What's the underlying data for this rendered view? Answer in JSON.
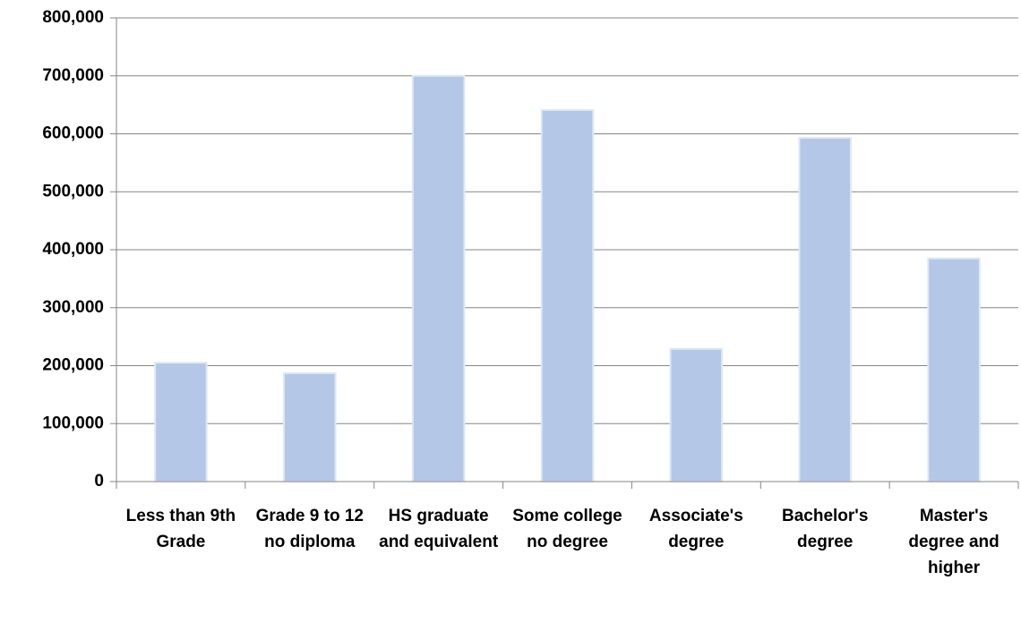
{
  "chart_data": {
    "type": "bar",
    "categories": [
      "Less than 9th Grade",
      "Grade 9 to 12 no diploma",
      "HS graduate and equivalent",
      "Some college no degree",
      "Associate's degree",
      "Bachelor's degree",
      "Master's degree and higher"
    ],
    "values": [
      205000,
      187000,
      700000,
      641000,
      229000,
      593000,
      385000
    ],
    "color": "#b4c7e7",
    "ylim": [
      0,
      800000
    ],
    "yticks": [
      0,
      {
        "value": 100000,
        "label": "100,000"
      },
      {
        "value": 200000,
        "label": "200,000"
      },
      {
        "value": 300000,
        "label": "300,000"
      },
      {
        "value": 400000,
        "label": "400,000"
      },
      {
        "value": 500000,
        "label": "500,000"
      },
      {
        "value": 600000,
        "label": "600,000"
      },
      {
        "value": 700000,
        "label": "700,000"
      },
      {
        "value": 800000,
        "label": "800,000"
      }
    ],
    "grid": true
  }
}
